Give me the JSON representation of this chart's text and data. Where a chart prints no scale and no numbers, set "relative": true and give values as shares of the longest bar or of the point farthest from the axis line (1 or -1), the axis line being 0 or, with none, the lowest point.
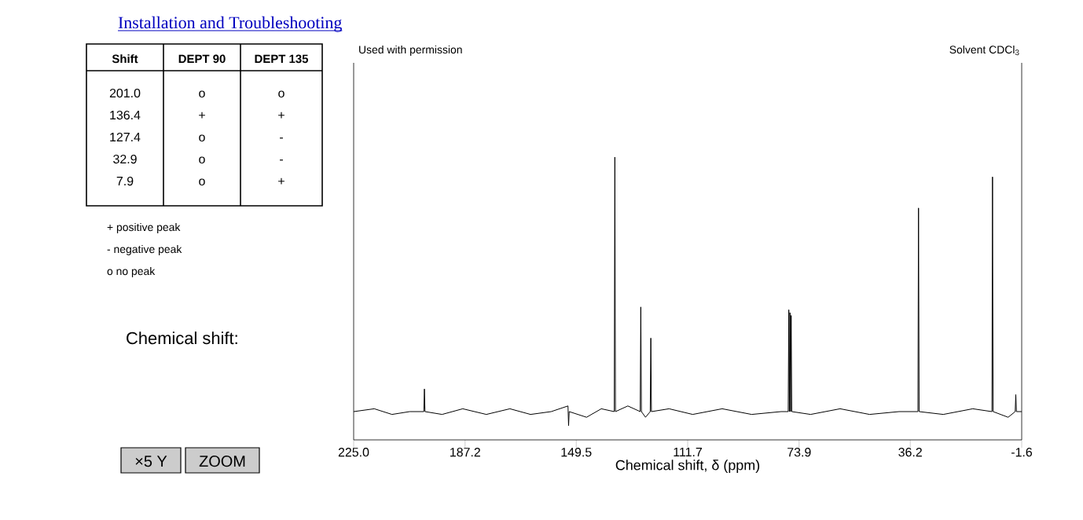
{
  "chart_data": {
    "type": "line",
    "title": "Installation and Troubleshooting",
    "subtitle": "Used with permission",
    "xlabel": "Chemical shift, δ (ppm)",
    "relative": true,
    "color": "#000000",
    "xlim": [
      225,
      -1.6
    ],
    "xticks": [
      {
        "value": 225,
        "label": "225.0"
      },
      {
        "value": 187.2,
        "label": "187.2"
      },
      {
        "value": 149.5,
        "label": "149.5"
      },
      {
        "value": 111.7,
        "label": "111.7"
      },
      {
        "value": 73.9,
        "label": "73.9"
      },
      {
        "value": 36.2,
        "label": "36.2"
      },
      {
        "value": -1.6,
        "label": "-1.6"
      }
    ],
    "x": [
      225,
      218,
      212,
      206,
      201.2,
      201.0,
      200.8,
      195,
      188,
      180,
      172,
      165,
      158,
      152.3,
      152.1,
      151.9,
      146,
      141,
      136.6,
      136.4,
      136.2,
      132,
      127.8,
      127.6,
      127.4,
      126,
      124.4,
      124.2,
      124.0,
      118,
      110,
      100,
      90,
      80,
      77.6,
      77.4,
      77.2,
      77.0,
      76.8,
      76.6,
      76.4,
      70,
      60,
      50,
      40,
      33.6,
      33.4,
      33.2,
      25,
      15,
      8.5,
      8.3,
      8.1,
      3,
      0.6,
      0.4,
      0.2,
      -1.6
    ],
    "values": [
      0.1,
      0.11,
      0.09,
      0.1,
      0.1,
      0.18,
      0.1,
      0.09,
      0.11,
      0.09,
      0.11,
      0.09,
      0.1,
      0.12,
      0.05,
      0.1,
      0.08,
      0.11,
      0.1,
      1.0,
      0.1,
      0.12,
      0.1,
      0.47,
      0.1,
      0.08,
      0.1,
      0.36,
      0.1,
      0.11,
      0.09,
      0.11,
      0.09,
      0.1,
      0.1,
      0.46,
      0.1,
      0.45,
      0.1,
      0.44,
      0.1,
      0.09,
      0.11,
      0.09,
      0.1,
      0.1,
      0.82,
      0.1,
      0.09,
      0.11,
      0.1,
      0.93,
      0.1,
      0.08,
      0.1,
      0.16,
      0.1,
      0.1
    ],
    "annotations": [
      "Solvent CDCl$_{3}$",
      "Shift",
      "DEPT 90",
      "DEPT 135",
      "201.0",
      "o",
      "o",
      "136.4",
      "+",
      "+",
      "127.4",
      "o",
      "-",
      "32.9",
      "o",
      "-",
      "7.9",
      "o",
      "+",
      "+  positive peak",
      "-  negative peak",
      "o  no peak",
      "Chemical shift:",
      "×5 Y",
      "ZOOM"
    ]
  }
}
